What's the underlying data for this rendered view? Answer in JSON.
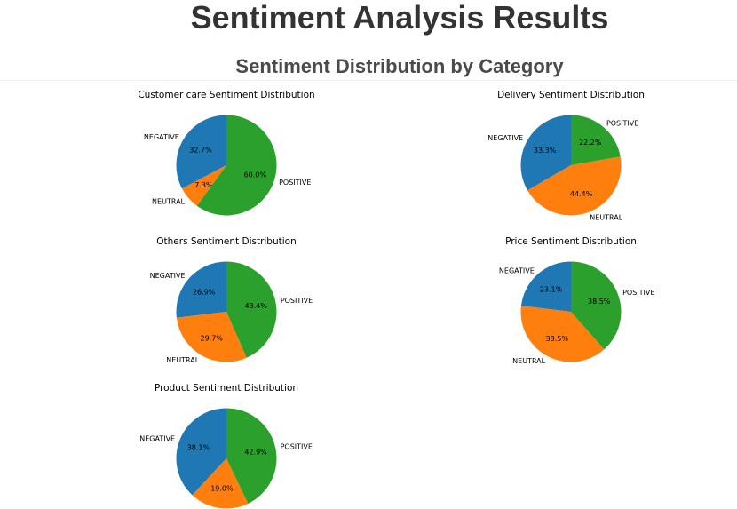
{
  "page": {
    "title": "Sentiment Analysis Results",
    "section_title": "Sentiment Distribution by Category"
  },
  "colors": {
    "NEGATIVE": "#1f77b4",
    "NEUTRAL": "#ff7f0e",
    "POSITIVE": "#2ca02c"
  },
  "chart_data": [
    {
      "type": "pie",
      "title": "Customer care Sentiment Distribution",
      "slices": [
        {
          "label": "NEGATIVE",
          "value": 32.7,
          "pct_text": "32.7%"
        },
        {
          "label": "NEUTRAL",
          "value": 7.3,
          "pct_text": "7.3%"
        },
        {
          "label": "POSITIVE",
          "value": 60.0,
          "pct_text": "60.0%"
        }
      ]
    },
    {
      "type": "pie",
      "title": "Delivery Sentiment Distribution",
      "slices": [
        {
          "label": "NEGATIVE",
          "value": 33.3,
          "pct_text": "33.3%"
        },
        {
          "label": "NEUTRAL",
          "value": 44.4,
          "pct_text": "44.4%"
        },
        {
          "label": "POSITIVE",
          "value": 22.2,
          "pct_text": "22.2%"
        }
      ]
    },
    {
      "type": "pie",
      "title": "Others Sentiment Distribution",
      "slices": [
        {
          "label": "NEGATIVE",
          "value": 26.9,
          "pct_text": "26.9%"
        },
        {
          "label": "NEUTRAL",
          "value": 29.7,
          "pct_text": "29.7%"
        },
        {
          "label": "POSITIVE",
          "value": 43.4,
          "pct_text": "43.4%"
        }
      ]
    },
    {
      "type": "pie",
      "title": "Price Sentiment Distribution",
      "slices": [
        {
          "label": "NEGATIVE",
          "value": 23.1,
          "pct_text": "23.1%"
        },
        {
          "label": "NEUTRAL",
          "value": 38.5,
          "pct_text": "38.5%"
        },
        {
          "label": "POSITIVE",
          "value": 38.5,
          "pct_text": "38.5%"
        }
      ]
    },
    {
      "type": "pie",
      "title": "Product Sentiment Distribution",
      "slices": [
        {
          "label": "NEGATIVE",
          "value": 38.1,
          "pct_text": "38.1%"
        },
        {
          "label": "NEUTRAL",
          "value": 19.0,
          "pct_text": "19.0%"
        },
        {
          "label": "POSITIVE",
          "value": 42.9,
          "pct_text": "42.9%"
        }
      ]
    }
  ]
}
